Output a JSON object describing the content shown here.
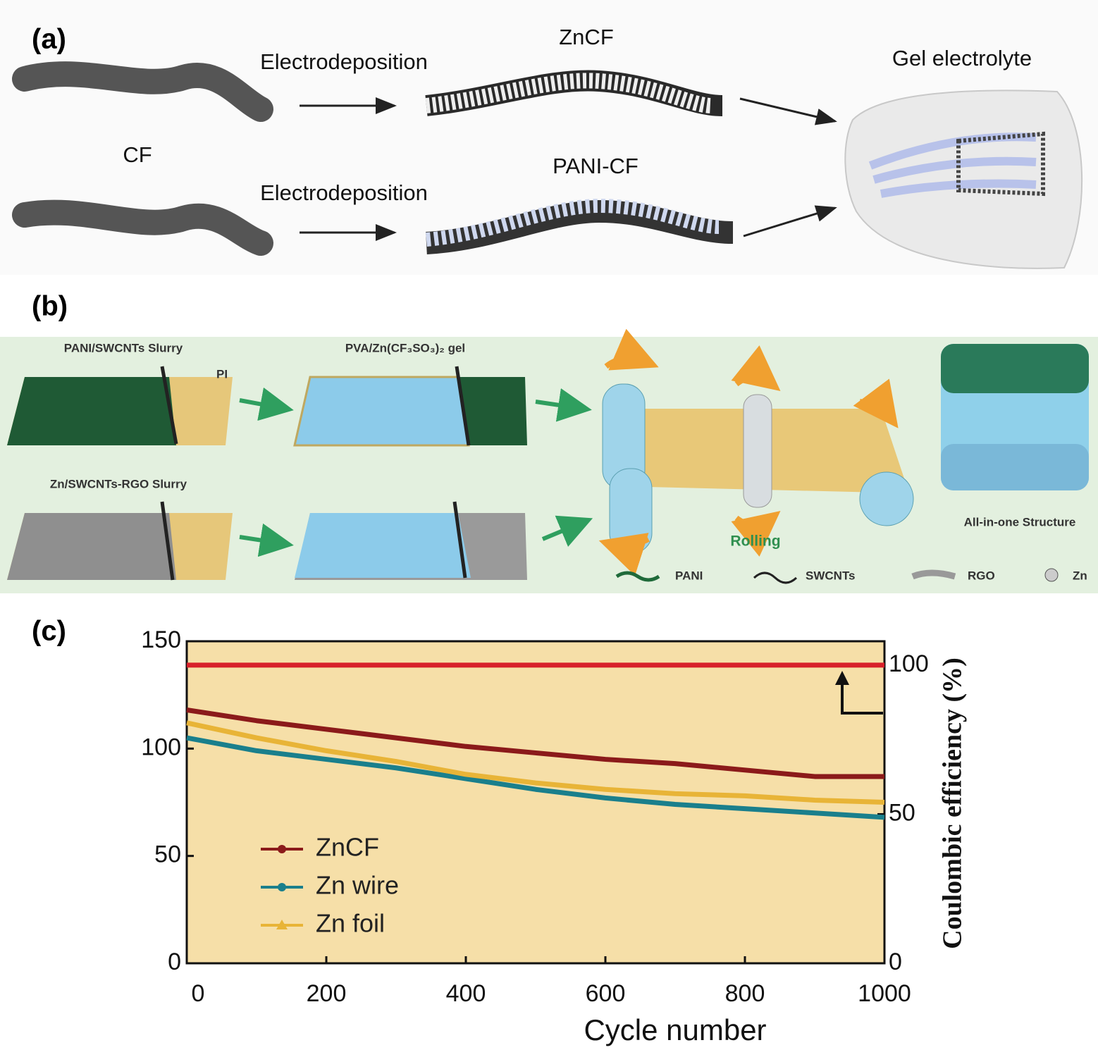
{
  "panel_a": {
    "label": "(a)",
    "step_top": "Electrodeposition",
    "step_bottom": "Electrodeposition",
    "product_top": "ZnCF",
    "source": "CF",
    "product_bottom": "PANI-CF",
    "result": "Gel electrolyte"
  },
  "panel_b": {
    "label": "(b)",
    "slurry_top": "PANI/SWCNTs Slurry",
    "substrate": "PI",
    "gel": "PVA/Zn(CF₃SO₃)₂ gel",
    "slurry_bottom": "Zn/SWCNTs-RGO Slurry",
    "process": "Rolling",
    "structure": "All-in-one Structure",
    "legend": [
      "PANI",
      "SWCNTs",
      "RGO",
      "Zn"
    ]
  },
  "chart_data": {
    "type": "line",
    "label": "(c)",
    "x_label": "Cycle number",
    "y2_label": "Coulombic efficiency (%)",
    "x": [
      0,
      100,
      200,
      300,
      400,
      500,
      600,
      700,
      800,
      900,
      1000
    ],
    "series": [
      {
        "name": "ZnCF",
        "color": "#8b1a1a",
        "values": [
          118,
          113,
          109,
          105,
          101,
          98,
          95,
          93,
          90,
          87,
          87
        ]
      },
      {
        "name": "Zn wire",
        "color": "#1a7f8c",
        "values": [
          105,
          99,
          95,
          91,
          86,
          81,
          77,
          74,
          72,
          70,
          68
        ]
      },
      {
        "name": "Zn foil",
        "color": "#e8b437",
        "values": [
          112,
          105,
          99,
          94,
          88,
          84,
          81,
          79,
          78,
          76,
          75
        ]
      },
      {
        "color": "#d8202a",
        "axis": "y2",
        "values": [
          100,
          100,
          100,
          100,
          100,
          100,
          100,
          100,
          100,
          100,
          100
        ]
      }
    ],
    "xlim": [
      0,
      1000
    ],
    "xticks": [
      0,
      200,
      400,
      600,
      800,
      1000
    ],
    "ylim": [
      0,
      150
    ],
    "yticks": [
      0,
      50,
      100,
      150
    ],
    "y2lim": [
      0,
      108
    ],
    "y2ticks": [
      0,
      50,
      100
    ]
  }
}
